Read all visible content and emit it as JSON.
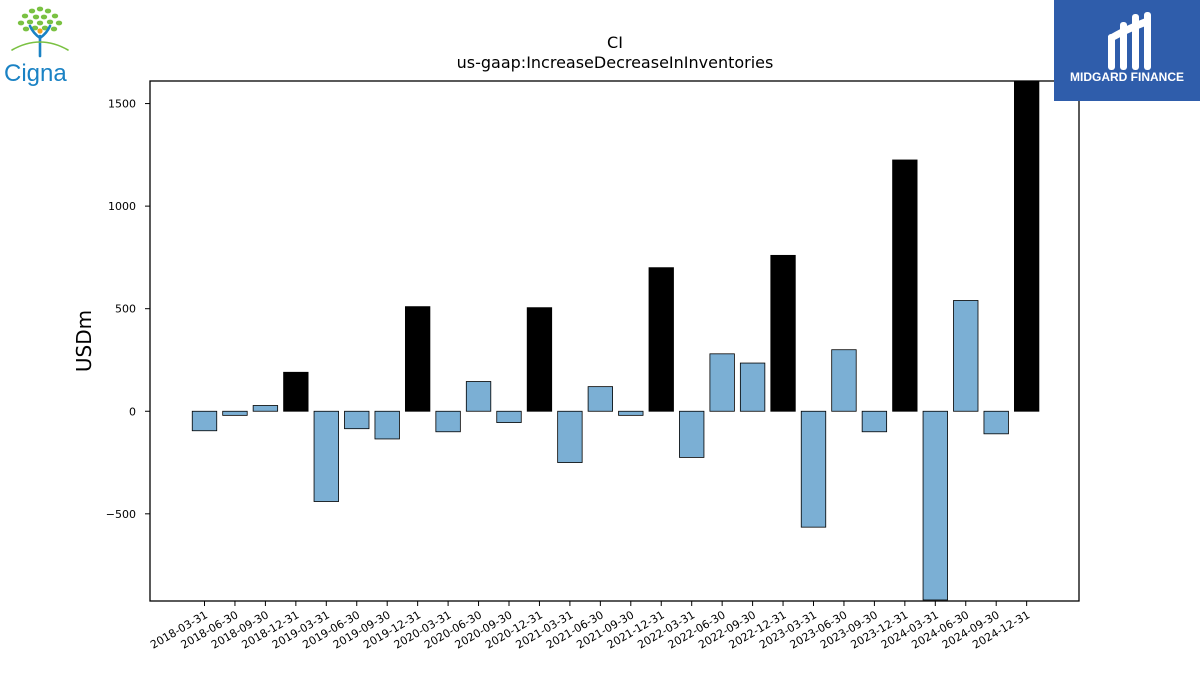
{
  "chart_data": {
    "type": "bar",
    "title": "CI",
    "subtitle": "us-gaap:IncreaseDecreaseInInventories",
    "ylabel": "USDm",
    "xlabel": "",
    "ylim": [
      -925,
      1610
    ],
    "yticks": [
      -500,
      0,
      500,
      1000,
      1500
    ],
    "grid": false,
    "categories": [
      "2018-03-31",
      "2018-06-30",
      "2018-09-30",
      "2018-12-31",
      "2019-03-31",
      "2019-06-30",
      "2019-09-30",
      "2019-12-31",
      "2020-03-31",
      "2020-06-30",
      "2020-09-30",
      "2020-12-31",
      "2021-03-31",
      "2021-06-30",
      "2021-09-30",
      "2021-12-31",
      "2022-03-31",
      "2022-06-30",
      "2022-09-30",
      "2022-12-31",
      "2023-03-31",
      "2023-06-30",
      "2023-09-30",
      "2023-12-31",
      "2024-03-31",
      "2024-06-30",
      "2024-09-30",
      "2024-12-31"
    ],
    "values": [
      -95,
      -20,
      28,
      190,
      -440,
      -85,
      -135,
      510,
      -100,
      145,
      -55,
      505,
      -250,
      120,
      -20,
      700,
      -225,
      280,
      235,
      760,
      -565,
      300,
      -100,
      1225,
      -920,
      540,
      -110,
      1610
    ],
    "colors": {
      "quarter": "#7bafd4",
      "year_end": "#000000",
      "edge": "#000000"
    }
  },
  "logos": {
    "left": {
      "name": "Cigna",
      "colors": {
        "text": "#1a82c4",
        "tree": "#7ac142",
        "trunk": "#1a82c4",
        "accent": "#f4a21e"
      }
    },
    "right": {
      "name": "MIDGARD FINANCE",
      "colors": {
        "bg": "#2f5dab",
        "fg": "#ffffff"
      }
    }
  }
}
